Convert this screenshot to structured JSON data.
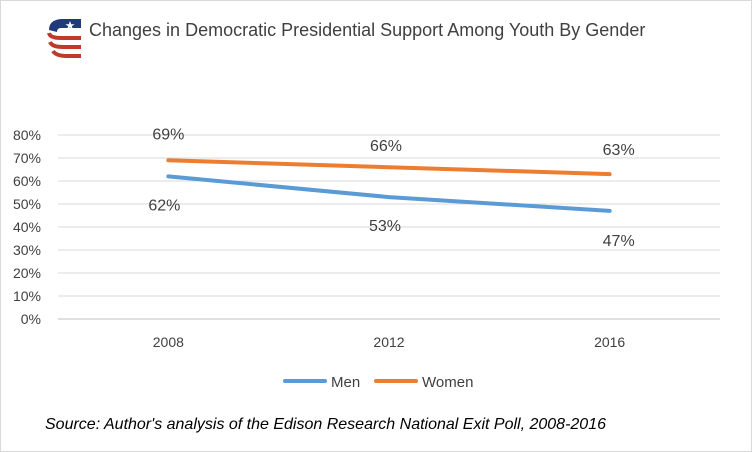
{
  "title": "Changes in Democratic Presidential Support Among Youth By Gender",
  "source": "Source: Author's analysis of the Edison Research National Exit Poll, 2008-2016",
  "logo": {
    "icon": "flag-star-stripes-logo",
    "colors": [
      "#1f3a7a",
      "#c0392b",
      "#ffffff"
    ]
  },
  "chart_data": {
    "type": "line",
    "title": "Changes in Democratic Presidential Support Among Youth By Gender",
    "categories": [
      "2008",
      "2012",
      "2016"
    ],
    "series": [
      {
        "name": "Men",
        "values": [
          62,
          53,
          47
        ],
        "labels": [
          "62%",
          "53%",
          "47%"
        ],
        "color": "#5b9bd5"
      },
      {
        "name": "Women",
        "values": [
          69,
          66,
          63
        ],
        "labels": [
          "69%",
          "66%",
          "63%"
        ],
        "color": "#ed7d31"
      }
    ],
    "yticks": [
      "0%",
      "10%",
      "20%",
      "30%",
      "40%",
      "50%",
      "60%",
      "70%",
      "80%"
    ],
    "ylim": [
      0,
      80
    ],
    "xlabel": "",
    "ylabel": "",
    "grid": true,
    "legend": "bottom"
  }
}
